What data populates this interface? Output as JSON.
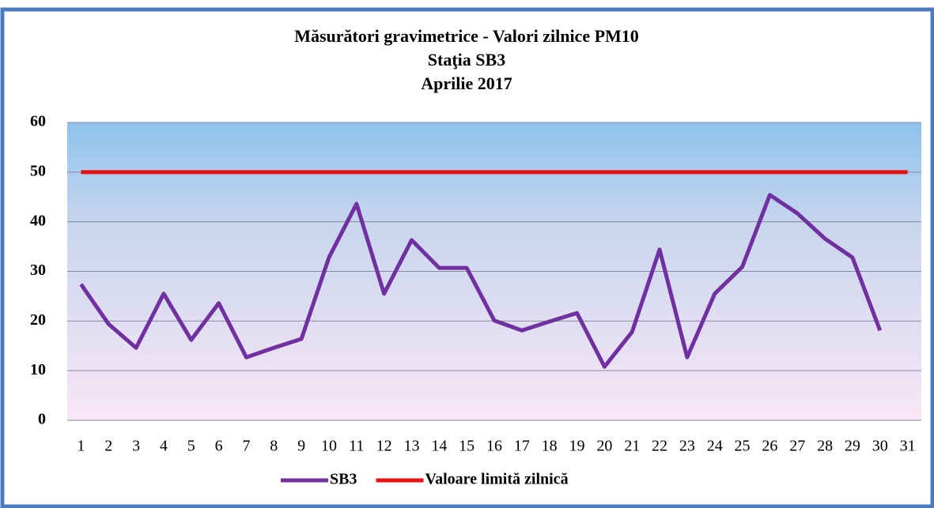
{
  "chart_data": {
    "type": "line",
    "title": [
      "Măsurători gravimetrice - Valori zilnice PM10",
      "Staţia  SB3",
      "Aprilie 2017"
    ],
    "categories": [
      "1",
      "2",
      "3",
      "4",
      "5",
      "6",
      "7",
      "8",
      "9",
      "10",
      "11",
      "12",
      "13",
      "14",
      "15",
      "16",
      "17",
      "18",
      "19",
      "20",
      "21",
      "22",
      "23",
      "24",
      "25",
      "26",
      "27",
      "28",
      "29",
      "30",
      "31"
    ],
    "series": [
      {
        "name": "SB3",
        "color": "#7030a0",
        "values": [
          27.4,
          19.4,
          14.6,
          25.5,
          16.2,
          23.6,
          12.7,
          14.6,
          16.4,
          32.8,
          43.6,
          25.5,
          36.3,
          30.7,
          30.7,
          20.1,
          18.1,
          19.9,
          21.6,
          10.8,
          17.8,
          34.4,
          12.7,
          25.5,
          30.9,
          45.4,
          41.7,
          36.6,
          32.8,
          18.1,
          null
        ]
      },
      {
        "name": "Valoare limită zilnică",
        "color": "#e81010",
        "values": [
          50,
          50,
          50,
          50,
          50,
          50,
          50,
          50,
          50,
          50,
          50,
          50,
          50,
          50,
          50,
          50,
          50,
          50,
          50,
          50,
          50,
          50,
          50,
          50,
          50,
          50,
          50,
          50,
          50,
          50,
          50
        ]
      }
    ],
    "ylim": [
      0,
      60
    ],
    "yticks": [
      0,
      10,
      20,
      30,
      40,
      50,
      60
    ],
    "grid": true,
    "legend": "bottom"
  }
}
